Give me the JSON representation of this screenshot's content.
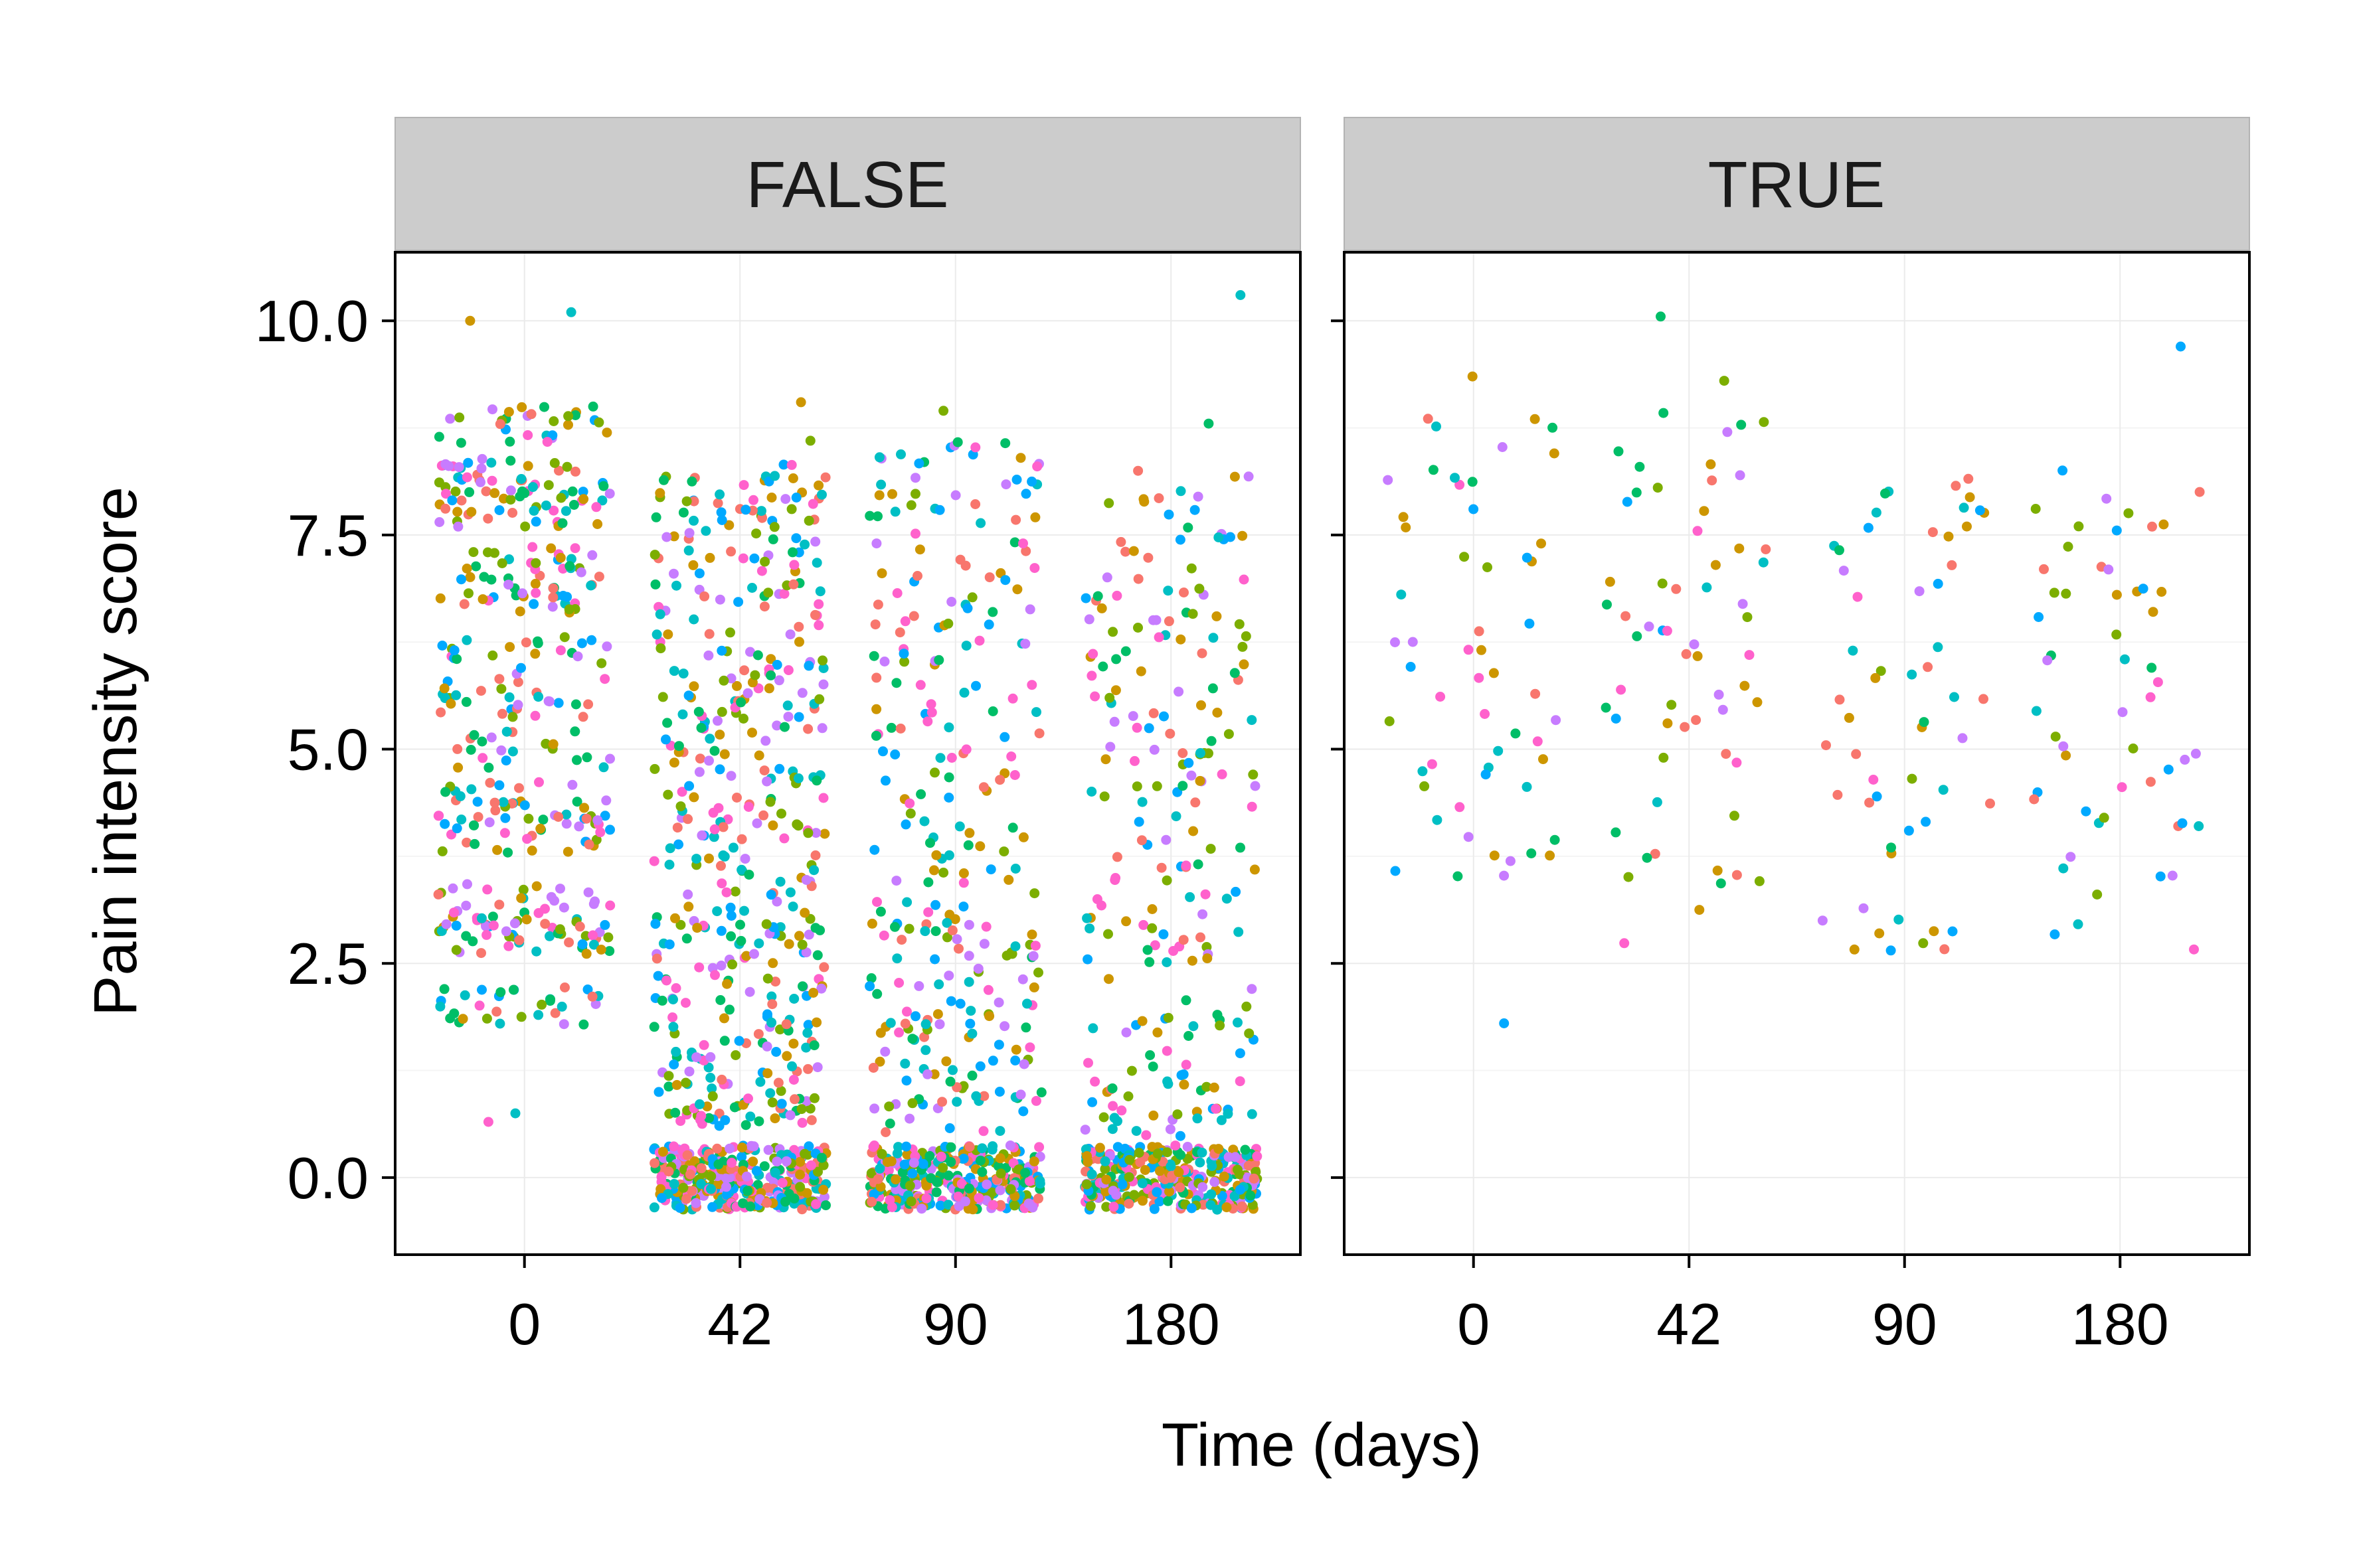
{
  "chart_data": {
    "type": "scatter",
    "facet_variable_values": [
      "FALSE",
      "TRUE"
    ],
    "xlabel": "Time (days)",
    "ylabel": "Pain intensity score",
    "x_categories": [
      "0",
      "42",
      "90",
      "180"
    ],
    "yticks": [
      0.0,
      2.5,
      5.0,
      7.5,
      10.0
    ],
    "ytick_labels": [
      "0.0",
      "2.5",
      "5.0",
      "7.5",
      "10.0"
    ],
    "ylim": [
      -0.9,
      10.8
    ],
    "grid": true,
    "jitter_width_fraction": 0.4,
    "point_colors": [
      "#F8766D",
      "#CD9600",
      "#7CAE00",
      "#00BE67",
      "#00BFC4",
      "#00A9FF",
      "#C77CFF",
      "#FF61CC"
    ],
    "panels": [
      {
        "label": "FALSE",
        "groups": [
          {
            "x": "0",
            "n": 420,
            "y_distribution": "mostly 2-9, dense 5.5-8, a few near 1 and 10"
          },
          {
            "x": "42",
            "n": 780,
            "y_distribution": "dense cluster at 0, many 0.5-7.5, a few up to 9"
          },
          {
            "x": "90",
            "n": 600,
            "y_distribution": "dense cluster at 0, many 0.5-8.5, sparser than day 42"
          },
          {
            "x": "180",
            "n": 560,
            "y_distribution": "dense cluster at 0, scattered 0.5-8.8, one near 10.3"
          }
        ],
        "notable_points": [
          {
            "x": "0",
            "y": 10.1
          },
          {
            "x": "0",
            "y": 10.0
          },
          {
            "x": "0",
            "y": 0.65
          },
          {
            "x": "0",
            "y": 0.75
          },
          {
            "x": "42",
            "y": 9.05
          },
          {
            "x": "42",
            "y": 8.6
          },
          {
            "x": "90",
            "y": 8.95
          },
          {
            "x": "90",
            "y": 8.4
          },
          {
            "x": "180",
            "y": 10.3
          },
          {
            "x": "180",
            "y": 8.8
          }
        ]
      },
      {
        "label": "TRUE",
        "groups": [
          {
            "x": "0",
            "n": 55,
            "y_distribution": "mostly 4-9, one near 1.8"
          },
          {
            "x": "42",
            "n": 60,
            "y_distribution": "2.7-10.1, spread across"
          },
          {
            "x": "90",
            "n": 55,
            "y_distribution": "2.6-8.2, spread across"
          },
          {
            "x": "180",
            "n": 55,
            "y_distribution": "2.6-9.7, spread across"
          }
        ],
        "notable_points": [
          {
            "x": "0",
            "y": 1.8
          },
          {
            "x": "0",
            "y": 9.35
          },
          {
            "x": "42",
            "y": 10.05
          },
          {
            "x": "42",
            "y": 9.3
          },
          {
            "x": "90",
            "y": 2.65
          },
          {
            "x": "180",
            "y": 9.7
          }
        ]
      }
    ]
  }
}
